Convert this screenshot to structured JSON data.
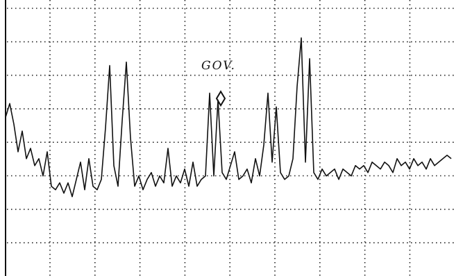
{
  "chart_data": {
    "type": "line",
    "annotation": "GOV.",
    "color": "#111111",
    "ylim": [
      0,
      8
    ],
    "grid": true,
    "values": [
      4.6,
      5.0,
      4.4,
      3.6,
      4.2,
      3.4,
      3.7,
      3.2,
      3.4,
      2.9,
      3.6,
      2.6,
      2.5,
      2.7,
      2.4,
      2.7,
      2.3,
      2.8,
      3.3,
      2.5,
      3.4,
      2.6,
      2.5,
      2.8,
      4.3,
      6.1,
      3.2,
      2.6,
      4.5,
      6.2,
      4.0,
      2.6,
      2.9,
      2.5,
      2.8,
      3.0,
      2.6,
      2.9,
      2.7,
      3.7,
      2.6,
      2.9,
      2.7,
      3.1,
      2.6,
      3.3,
      2.6,
      2.8,
      2.9,
      5.3,
      2.9,
      5.1,
      3.0,
      2.8,
      3.2,
      3.6,
      2.8,
      2.9,
      3.1,
      2.7,
      3.4,
      2.9,
      3.8,
      5.3,
      3.3,
      4.9,
      3.0,
      2.8,
      2.9,
      3.4,
      5.5,
      6.9,
      3.3,
      6.3,
      3.0,
      2.8,
      3.1,
      2.9,
      3.0,
      3.1,
      2.8,
      3.1,
      3.0,
      2.9,
      3.2,
      3.1,
      3.2,
      3.0,
      3.3,
      3.2,
      3.1,
      3.3,
      3.2,
      3.0,
      3.4,
      3.2,
      3.3,
      3.1,
      3.4,
      3.2,
      3.3,
      3.1,
      3.4,
      3.2,
      3.3,
      3.4,
      3.5,
      3.4
    ]
  }
}
